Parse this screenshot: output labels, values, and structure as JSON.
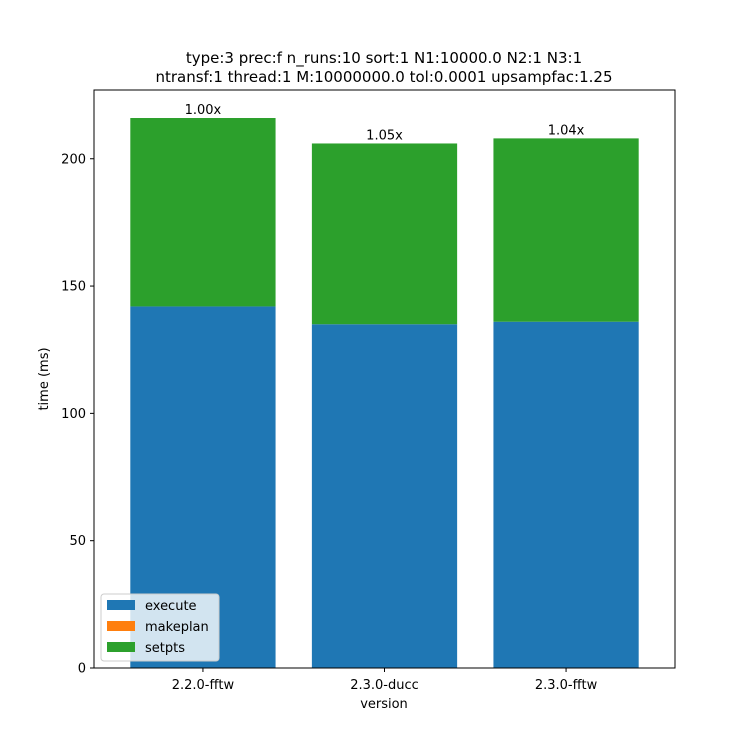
{
  "chart_data": {
    "type": "bar",
    "stacked": true,
    "title_line1": "type:3 prec:f n_runs:10 sort:1 N1:10000.0 N2:1 N3:1",
    "title_line2": "ntransf:1 thread:1 M:10000000.0 tol:0.0001 upsampfac:1.25",
    "xlabel": "version",
    "ylabel": "time (ms)",
    "categories": [
      "2.2.0-fftw",
      "2.3.0-ducc",
      "2.3.0-fftw"
    ],
    "series": [
      {
        "name": "execute",
        "color": "#1f77b4",
        "values": [
          142,
          135,
          136
        ]
      },
      {
        "name": "makeplan",
        "color": "#ff7f0e",
        "values": [
          0,
          0,
          0
        ]
      },
      {
        "name": "setpts",
        "color": "#2ca02c",
        "values": [
          74,
          71,
          72
        ]
      }
    ],
    "bar_labels": [
      "1.00x",
      "1.05x",
      "1.04x"
    ],
    "ylim": [
      0,
      227
    ],
    "yticks": [
      0,
      50,
      100,
      150,
      200
    ],
    "grid": false,
    "legend_position": "lower-left"
  }
}
